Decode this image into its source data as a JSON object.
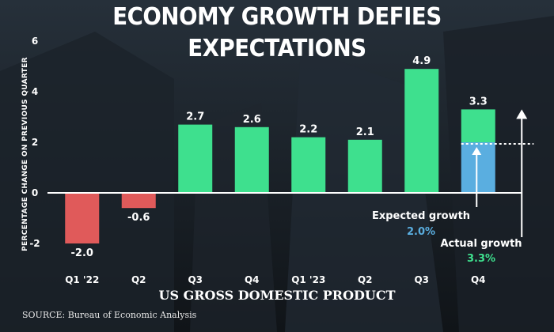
{
  "header": {
    "title": "ECONOMY GROWTH DEFIES EXPECTATIONS"
  },
  "source": "SOURCE: Bureau of Economic Analysis",
  "colors": {
    "positive": "#3ee08e",
    "negative": "#e05a5a",
    "expected": "#5aaee0",
    "actual_value": "#3ee08e",
    "expected_value": "#5aaee0"
  },
  "annotations": {
    "expected_label": "Expected growth",
    "expected_value": "2.0%",
    "actual_label": "Actual growth",
    "actual_value": "3.3%"
  },
  "chart_data": {
    "type": "bar",
    "title": "ECONOMY GROWTH DEFIES EXPECTATIONS",
    "xlabel": "US GROSS DOMESTIC PRODUCT",
    "ylabel": "PERCENTAGE CHANGE ON PREVIOUS QUARTER",
    "categories": [
      "Q1 '22",
      "Q2",
      "Q3",
      "Q4",
      "Q1 '23",
      "Q2",
      "Q3",
      "Q4"
    ],
    "values": [
      -2.0,
      -0.6,
      2.7,
      2.6,
      2.2,
      2.1,
      4.9,
      3.3
    ],
    "value_labels": [
      "-2.0",
      "-0.6",
      "2.7",
      "2.6",
      "2.2",
      "2.1",
      "4.9",
      "3.3"
    ],
    "expected_last": 2.0,
    "ylim": [
      -3,
      6
    ],
    "yticks": [
      -2,
      0,
      2,
      4,
      6
    ],
    "ytick_labels": [
      "-2",
      "0",
      "2",
      "4",
      "6"
    ]
  }
}
